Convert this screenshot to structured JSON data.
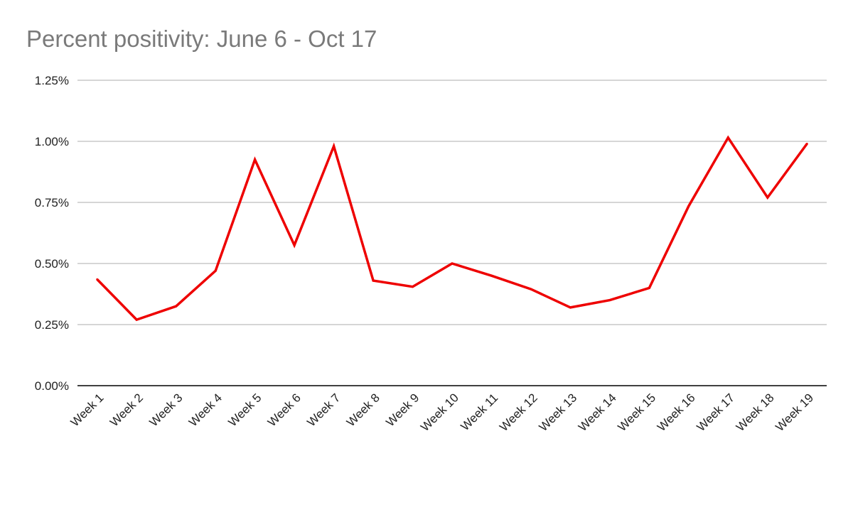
{
  "chart_data": {
    "type": "line",
    "title": "Percent positivity: June 6 - Oct 17",
    "xlabel": "",
    "ylabel": "",
    "categories": [
      "Week 1",
      "Week 2",
      "Week 3",
      "Week 4",
      "Week 5",
      "Week 6",
      "Week 7",
      "Week 8",
      "Week 9",
      "Week 10",
      "Week 11",
      "Week 12",
      "Week 13",
      "Week 14",
      "Week 15",
      "Week 16",
      "Week 17",
      "Week 18",
      "Week 19"
    ],
    "series": [
      {
        "values": [
          0.435,
          0.27,
          0.325,
          0.47,
          0.925,
          0.575,
          0.98,
          0.43,
          0.405,
          0.5,
          0.45,
          0.395,
          0.32,
          0.35,
          0.4,
          0.735,
          1.015,
          0.77,
          0.99
        ],
        "color": "#ee0000"
      }
    ],
    "ylim": [
      0,
      1.25
    ],
    "yticks": [
      0,
      0.25,
      0.5,
      0.75,
      1.0,
      1.25
    ],
    "ytick_labels": [
      "0.00%",
      "0.25%",
      "0.50%",
      "0.75%",
      "1.00%",
      "1.25%"
    ],
    "grid": true,
    "gridline_color": "#c8c8c8",
    "axis_color": "#000000",
    "legend": "none"
  }
}
